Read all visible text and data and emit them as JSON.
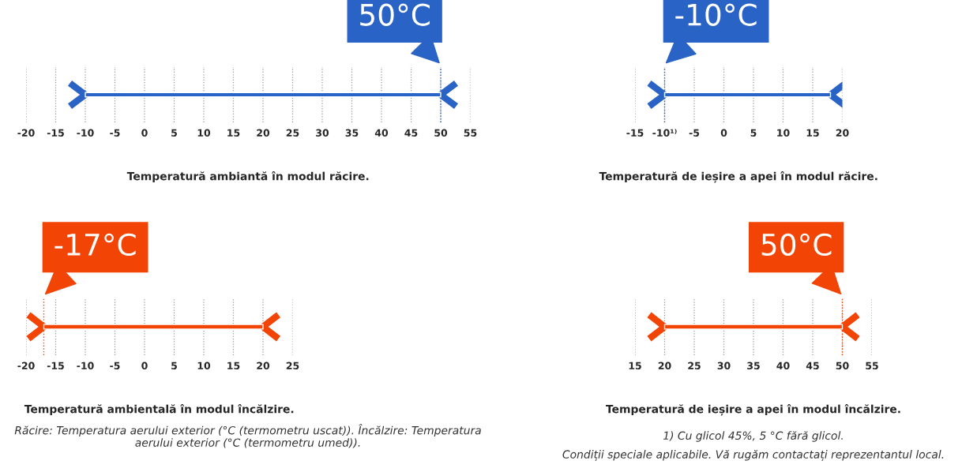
{
  "chart_data": [
    {
      "type": "bar",
      "orientation": "horizontal",
      "categories": [
        null
      ],
      "base": [
        -10
      ],
      "values": [
        60
      ],
      "colors": [
        "#2a63c6"
      ],
      "xlim": [
        -20,
        55
      ],
      "xticks": [
        -20,
        -15,
        -10,
        -5,
        0,
        5,
        10,
        15,
        20,
        25,
        30,
        35,
        40,
        45,
        50,
        55
      ],
      "grid": "x",
      "tick_labels": "x",
      "xlabel": "Temperatură ambiantă în modul răcire.",
      "ref_lines": [
        {
          "axis": "x",
          "value": 50,
          "label": "50°C",
          "color": "#2a63c6",
          "line_style": "dotted"
        }
      ]
    },
    {
      "type": "bar",
      "orientation": "horizontal",
      "categories": [
        null
      ],
      "base": [
        -10
      ],
      "values": [
        28
      ],
      "colors": [
        "#2a63c6"
      ],
      "xlim": [
        -15,
        20
      ],
      "xticks": [
        -15,
        {
          "value": -10,
          "label": "-10¹⁾"
        },
        -5,
        0,
        5,
        10,
        15,
        20
      ],
      "grid": "x",
      "tick_labels": "x",
      "xlabel": "Temperatură de ieșire a apei în modul răcire.",
      "ref_lines": [
        {
          "axis": "x",
          "value": -10,
          "label": "-10°C",
          "color": "#2a63c6",
          "line_style": "dotted"
        }
      ]
    },
    {
      "type": "bar",
      "orientation": "horizontal",
      "categories": [
        null
      ],
      "base": [
        -17
      ],
      "values": [
        37
      ],
      "colors": [
        "#f24405"
      ],
      "xlim": [
        -20,
        25
      ],
      "xticks": [
        -20,
        -15,
        -10,
        -5,
        0,
        5,
        10,
        15,
        20,
        25
      ],
      "grid": "x",
      "tick_labels": "x",
      "xlabel": "Temperatură ambientală în modul încălzire.",
      "ref_lines": [
        {
          "axis": "x",
          "value": -17,
          "label": "-17°C",
          "color": "#f24405",
          "line_style": "dotted"
        }
      ],
      "annotations": [
        "Răcire: Temperatura aerului exterior (°C (termometru uscat)). Încălzire: Temperatura aerului exterior (°C (termometru umed))."
      ]
    },
    {
      "type": "bar",
      "orientation": "horizontal",
      "categories": [
        null
      ],
      "base": [
        20
      ],
      "values": [
        30
      ],
      "colors": [
        "#f24405"
      ],
      "xlim": [
        15,
        55
      ],
      "xticks": [
        15,
        20,
        25,
        30,
        35,
        40,
        45,
        50,
        55
      ],
      "grid": "x",
      "tick_labels": "x",
      "xlabel": "Temperatură de ieșire a apei în modul încălzire.",
      "ref_lines": [
        {
          "axis": "x",
          "value": 50,
          "label": "50°C",
          "color": "#f24405",
          "line_style": "dotted"
        }
      ],
      "annotations": [
        "1) Cu glicol 45%, 5 °C fără glicol.",
        "Condiții speciale aplicabile. Vă rugăm contactați reprezentantul local."
      ]
    }
  ]
}
